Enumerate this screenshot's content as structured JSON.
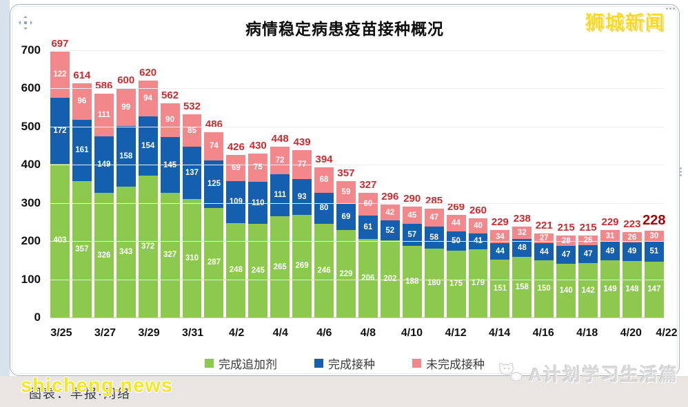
{
  "window": {
    "logo_text": "狮城新闻",
    "watermark_bottom_left": "shicheng.news",
    "caption": "图表：早报·网络",
    "watermark_bottom_right": "A计划学习生活篇"
  },
  "chart_data": {
    "type": "bar",
    "stacked": true,
    "title": "病情稳定病患疫苗接种概况",
    "x_tick_labels": [
      "3/25",
      "3/27",
      "3/29",
      "3/31",
      "4/2",
      "4/4",
      "4/6",
      "4/8",
      "4/10",
      "4/12",
      "4/14",
      "4/16",
      "4/18",
      "4/20",
      "4/22"
    ],
    "y_ticks": [
      700,
      600,
      500,
      400,
      300,
      200,
      100,
      0
    ],
    "ylim": [
      0,
      700
    ],
    "grid": "horizontal",
    "legend_position": "bottom",
    "series": [
      {
        "name": "完成追加剂",
        "color": "#8cc94e",
        "values": [
          403,
          357,
          326,
          343,
          372,
          327,
          310,
          287,
          248,
          245,
          265,
          269,
          246,
          229,
          206,
          202,
          188,
          180,
          175,
          179,
          151,
          158,
          150,
          140,
          142,
          149,
          148,
          147
        ]
      },
      {
        "name": "完成接种",
        "color": "#1560ae",
        "values": [
          172,
          161,
          149,
          158,
          154,
          145,
          137,
          125,
          109,
          110,
          111,
          93,
          80,
          69,
          61,
          52,
          57,
          58,
          50,
          41,
          44,
          48,
          44,
          47,
          47,
          49,
          49,
          51
        ]
      },
      {
        "name": "未完成接种",
        "color": "#f2878c",
        "values": [
          122,
          96,
          111,
          99,
          94,
          90,
          85,
          74,
          69,
          75,
          72,
          77,
          68,
          59,
          60,
          42,
          45,
          47,
          44,
          40,
          34,
          32,
          27,
          28,
          26,
          31,
          26,
          30
        ]
      }
    ],
    "totals": [
      697,
      614,
      586,
      600,
      620,
      562,
      532,
      486,
      426,
      430,
      448,
      439,
      394,
      357,
      327,
      296,
      290,
      285,
      269,
      260,
      229,
      238,
      221,
      215,
      215,
      229,
      223,
      228
    ],
    "colors": {
      "total_label": "#cb2a2e",
      "final_total_label": "#ae0000",
      "segment_text": "#ffffff",
      "axis_text": "#111111",
      "gridline": "#ededed"
    }
  }
}
